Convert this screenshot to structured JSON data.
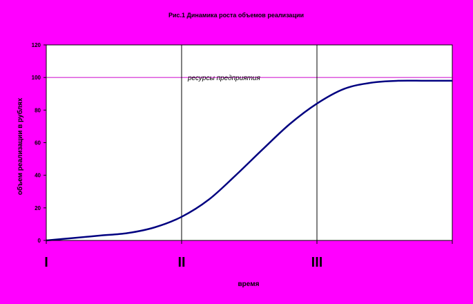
{
  "chart_data": {
    "type": "line",
    "title": "Рис.1 Динамика роста объемов реализации",
    "xlabel": "время",
    "ylabel": "объем реализации в рублях",
    "xlim": [
      0,
      3
    ],
    "ylim": [
      0,
      120
    ],
    "yticks": [
      0,
      20,
      40,
      60,
      80,
      100,
      120
    ],
    "ytick_labels": [
      "0",
      "20",
      "40",
      "60",
      "80",
      "100",
      "120"
    ],
    "xticks": [
      0,
      1,
      2,
      3
    ],
    "stage_labels": [
      "I",
      "II",
      "III"
    ],
    "stage_positions": [
      0,
      1,
      2
    ],
    "grid": false,
    "legend": "none",
    "series": [
      {
        "color": "#000080",
        "x": [
          0,
          0.2,
          0.4,
          0.6,
          0.8,
          1.0,
          1.2,
          1.4,
          1.6,
          1.8,
          2.0,
          2.2,
          2.4,
          2.6,
          2.8,
          3.0
        ],
        "y": [
          0,
          1.5,
          3,
          4.5,
          8,
          14.5,
          25,
          40,
          56,
          71.5,
          84,
          93,
          96.8,
          98,
          98,
          98
        ]
      }
    ],
    "reference_line": {
      "y": 100,
      "label": "ресурсы предприятия",
      "color": "#cc00cc"
    },
    "vertical_lines": [
      1,
      2
    ],
    "colors": {
      "background": "#ff00ff",
      "plot_area": "#ffffff",
      "line": "#000080",
      "reference": "#cc00cc"
    }
  }
}
